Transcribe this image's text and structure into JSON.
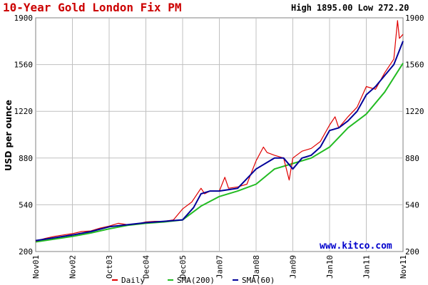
{
  "header": {
    "title": "10-Year Gold London Fix PM",
    "high_label": "High",
    "high_value": "1895.00",
    "low_label": "Low",
    "low_value": "272.20"
  },
  "watermark": "www.kitco.com",
  "colors": {
    "title": "#cc0000",
    "daily": "#e00000",
    "sma200": "#22bb22",
    "sma60": "#000099",
    "watermark": "#0000cc",
    "grid": "#c0c0c0"
  },
  "chart_data": {
    "type": "line",
    "ylabel": "USD per ounce",
    "ylim": [
      200,
      1900
    ],
    "yticks": [
      200,
      540,
      880,
      1220,
      1560,
      1900
    ],
    "xlim": [
      0,
      10.0
    ],
    "xticks": [
      {
        "x": 0.0,
        "label": "Nov01"
      },
      {
        "x": 1.0,
        "label": "Nov02"
      },
      {
        "x": 2.0,
        "label": "Oct03"
      },
      {
        "x": 3.0,
        "label": "Dec04"
      },
      {
        "x": 4.0,
        "label": "Dec05"
      },
      {
        "x": 5.0,
        "label": "Jan07"
      },
      {
        "x": 6.0,
        "label": "Jan08"
      },
      {
        "x": 7.0,
        "label": "Jan09"
      },
      {
        "x": 8.0,
        "label": "Jan10"
      },
      {
        "x": 9.0,
        "label": "Jan11"
      },
      {
        "x": 10.0,
        "label": "Nov11"
      }
    ],
    "legend": [
      "Daily",
      "SMA(200)",
      "SMA(60)"
    ],
    "series": [
      {
        "name": "Daily",
        "x": [
          0,
          0.25,
          0.5,
          0.75,
          1.0,
          1.25,
          1.5,
          1.75,
          2.0,
          2.25,
          2.5,
          2.75,
          3.0,
          3.25,
          3.5,
          3.75,
          4.0,
          4.25,
          4.5,
          4.6,
          4.75,
          5.0,
          5.15,
          5.25,
          5.5,
          5.75,
          6.0,
          6.2,
          6.3,
          6.5,
          6.75,
          6.9,
          7.0,
          7.25,
          7.5,
          7.75,
          8.0,
          8.15,
          8.25,
          8.5,
          8.75,
          9.0,
          9.25,
          9.5,
          9.75,
          9.85,
          9.9,
          10.0
        ],
        "values": [
          275,
          295,
          310,
          320,
          330,
          345,
          350,
          370,
          385,
          405,
          395,
          400,
          415,
          420,
          420,
          430,
          510,
          560,
          660,
          620,
          640,
          640,
          740,
          660,
          670,
          690,
          860,
          960,
          920,
          900,
          880,
          720,
          880,
          930,
          950,
          1000,
          1120,
          1180,
          1100,
          1180,
          1250,
          1400,
          1380,
          1500,
          1600,
          1880,
          1750,
          1780
        ]
      },
      {
        "name": "SMA(200)",
        "x": [
          0,
          0.5,
          1.0,
          1.5,
          2.0,
          2.5,
          3.0,
          3.5,
          4.0,
          4.5,
          5.0,
          5.5,
          6.0,
          6.5,
          7.0,
          7.5,
          8.0,
          8.5,
          9.0,
          9.5,
          10.0
        ],
        "values": [
          270,
          290,
          310,
          335,
          365,
          390,
          405,
          415,
          430,
          530,
          600,
          640,
          690,
          800,
          840,
          880,
          960,
          1100,
          1200,
          1360,
          1570
        ]
      },
      {
        "name": "SMA(60)",
        "x": [
          0,
          0.5,
          1.0,
          1.5,
          2.0,
          2.5,
          3.0,
          3.5,
          4.0,
          4.3,
          4.5,
          4.75,
          5.0,
          5.5,
          6.0,
          6.5,
          6.75,
          7.0,
          7.25,
          7.5,
          7.75,
          8.0,
          8.25,
          8.5,
          8.75,
          9.0,
          9.25,
          9.5,
          9.75,
          10.0
        ],
        "values": [
          280,
          300,
          320,
          345,
          380,
          395,
          410,
          420,
          430,
          520,
          620,
          640,
          640,
          660,
          800,
          880,
          880,
          800,
          880,
          900,
          960,
          1080,
          1100,
          1150,
          1220,
          1340,
          1400,
          1480,
          1560,
          1730
        ]
      }
    ]
  }
}
